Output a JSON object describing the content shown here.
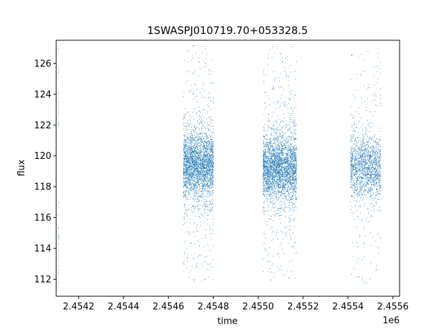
{
  "chart_data": {
    "type": "scatter",
    "title": "1SWASPJ010719.70+053328.5",
    "xlabel": "time",
    "ylabel": "flux",
    "x_offset_label": "1e6",
    "xlim": [
      2454100,
      2455630
    ],
    "ylim": [
      110.9,
      127.5
    ],
    "x_ticks": [
      2454200,
      2454400,
      2454600,
      2454800,
      2455000,
      2455200,
      2455400,
      2455600
    ],
    "x_tick_labels": [
      "2.4542",
      "2.4544",
      "2.4546",
      "2.4548",
      "2.4550",
      "2.4552",
      "2.4554",
      "2.4556"
    ],
    "y_ticks": [
      112,
      114,
      116,
      118,
      120,
      122,
      124,
      126
    ],
    "y_tick_labels": [
      "112",
      "114",
      "116",
      "118",
      "120",
      "122",
      "124",
      "126"
    ],
    "grid": false,
    "marker_color": "#1f77b4",
    "clusters": [
      {
        "x_range": [
          2454108,
          2454110
        ],
        "y_center": 119.5,
        "y_spread": 6.5,
        "core_count": 0,
        "outlier_count": 40
      },
      {
        "x_range": [
          2454665,
          2454800
        ],
        "y_center": 119.4,
        "y_spread": 1.1,
        "core_count": 2600,
        "outlier_count": 320
      },
      {
        "x_range": [
          2455020,
          2455170
        ],
        "y_center": 119.2,
        "y_spread": 1.1,
        "core_count": 2800,
        "outlier_count": 340
      },
      {
        "x_range": [
          2455410,
          2455545
        ],
        "y_center": 119.3,
        "y_spread": 1.0,
        "core_count": 1500,
        "outlier_count": 170
      }
    ]
  }
}
